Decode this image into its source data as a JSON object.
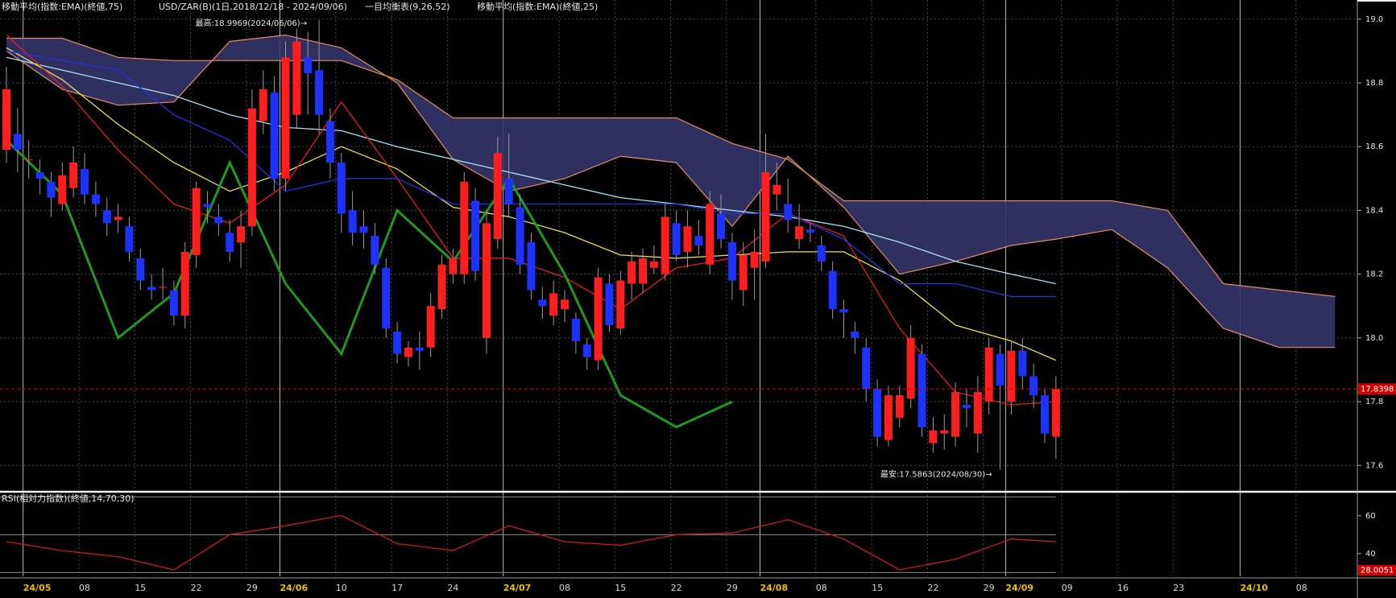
{
  "chart_data": [
    {
      "type": "candlestick",
      "title": "USD/ZAR(B)(1日,2018/12/18 - 2024/09/06)",
      "x": [
        "2024-04-29",
        "2024-04-30",
        "2024-05-01",
        "2024-05-02",
        "2024-05-03",
        "2024-05-06",
        "2024-05-07",
        "2024-05-08",
        "2024-05-09",
        "2024-05-10",
        "2024-05-13",
        "2024-05-14",
        "2024-05-15",
        "2024-05-16",
        "2024-05-17",
        "2024-05-20",
        "2024-05-21",
        "2024-05-22",
        "2024-05-23",
        "2024-05-24",
        "2024-05-27",
        "2024-05-28",
        "2024-05-29",
        "2024-05-30",
        "2024-05-31",
        "2024-06-03",
        "2024-06-04",
        "2024-06-05",
        "2024-06-06",
        "2024-06-07",
        "2024-06-10",
        "2024-06-11",
        "2024-06-12",
        "2024-06-13",
        "2024-06-14",
        "2024-06-17",
        "2024-06-18",
        "2024-06-19",
        "2024-06-20",
        "2024-06-21",
        "2024-06-24",
        "2024-06-25",
        "2024-06-26",
        "2024-06-27",
        "2024-06-28",
        "2024-07-01",
        "2024-07-02",
        "2024-07-03",
        "2024-07-04",
        "2024-07-05",
        "2024-07-08",
        "2024-07-09",
        "2024-07-10",
        "2024-07-11",
        "2024-07-12",
        "2024-07-15",
        "2024-07-16",
        "2024-07-17",
        "2024-07-18",
        "2024-07-19",
        "2024-07-22",
        "2024-07-23",
        "2024-07-24",
        "2024-07-25",
        "2024-07-26",
        "2024-07-29",
        "2024-07-30",
        "2024-07-31",
        "2024-08-01",
        "2024-08-02",
        "2024-08-05",
        "2024-08-06",
        "2024-08-07",
        "2024-08-08",
        "2024-08-09",
        "2024-08-12",
        "2024-08-13",
        "2024-08-14",
        "2024-08-15",
        "2024-08-16",
        "2024-08-19",
        "2024-08-20",
        "2024-08-21",
        "2024-08-22",
        "2024-08-23",
        "2024-08-26",
        "2024-08-27",
        "2024-08-28",
        "2024-08-29",
        "2024-08-30",
        "2024-09-02",
        "2024-09-03",
        "2024-09-04",
        "2024-09-05",
        "2024-09-06"
      ],
      "open": [
        18.59,
        18.64,
        18.56,
        18.52,
        18.49,
        18.42,
        18.47,
        18.53,
        18.45,
        18.4,
        18.37,
        18.35,
        18.25,
        18.16,
        18.16,
        18.15,
        18.07,
        18.26,
        18.42,
        18.38,
        18.33,
        18.3,
        18.35,
        18.68,
        18.77,
        18.5,
        18.7,
        18.88,
        18.84,
        18.68,
        18.55,
        18.4,
        18.35,
        18.32,
        18.22,
        18.02,
        17.94,
        17.97,
        17.97,
        18.09,
        18.2,
        18.2,
        18.43,
        18.0,
        18.31,
        18.5,
        18.41,
        18.3,
        18.12,
        18.07,
        18.09,
        18.06,
        17.98,
        17.93,
        18.17,
        18.03,
        18.17,
        18.17,
        18.22,
        18.2,
        18.36,
        18.27,
        18.32,
        18.23,
        18.39,
        18.3,
        18.15,
        18.22,
        18.24,
        18.45,
        18.42,
        18.31,
        18.34,
        18.29,
        18.21,
        18.09,
        18.02,
        17.97,
        17.84,
        17.68,
        17.75,
        17.81,
        17.95,
        17.67,
        17.7,
        17.69,
        17.79,
        17.7,
        17.8,
        17.95,
        17.8,
        17.96,
        17.88,
        17.82,
        17.69
      ],
      "high": [
        18.85,
        18.72,
        18.62,
        18.56,
        18.52,
        18.55,
        18.6,
        18.58,
        18.49,
        18.44,
        18.42,
        18.38,
        18.28,
        18.2,
        18.22,
        18.18,
        18.3,
        18.49,
        18.46,
        18.42,
        18.37,
        18.4,
        18.78,
        18.84,
        18.82,
        18.93,
        18.97,
        18.96,
        18.9969,
        18.72,
        18.58,
        18.46,
        18.4,
        18.36,
        18.25,
        18.05,
        17.99,
        18.02,
        18.14,
        18.26,
        18.28,
        18.52,
        18.47,
        18.4,
        18.63,
        18.64,
        18.45,
        18.33,
        18.16,
        18.18,
        18.15,
        18.08,
        18.0,
        18.22,
        18.2,
        18.21,
        18.27,
        18.28,
        18.29,
        18.42,
        18.4,
        18.4,
        18.37,
        18.46,
        18.45,
        18.33,
        18.3,
        18.34,
        18.64,
        18.55,
        18.5,
        18.42,
        18.36,
        18.32,
        18.24,
        18.12,
        18.05,
        18.0,
        17.87,
        17.85,
        17.85,
        18.04,
        17.98,
        17.75,
        17.76,
        17.86,
        17.84,
        17.88,
        18.0,
        17.98,
        17.99,
        18.0,
        17.92,
        17.84,
        17.88
      ],
      "low": [
        18.55,
        18.52,
        18.5,
        18.45,
        18.38,
        18.4,
        18.44,
        18.42,
        18.38,
        18.32,
        18.33,
        18.24,
        18.15,
        18.12,
        18.12,
        18.04,
        18.03,
        18.22,
        18.36,
        18.32,
        18.24,
        18.22,
        18.32,
        18.64,
        18.46,
        18.46,
        18.66,
        18.7,
        18.64,
        18.5,
        18.33,
        18.29,
        18.28,
        18.2,
        18.0,
        17.92,
        17.91,
        17.9,
        17.94,
        18.06,
        18.17,
        18.17,
        18.18,
        17.95,
        18.28,
        18.38,
        18.2,
        18.12,
        18.06,
        18.04,
        18.05,
        17.95,
        17.9,
        17.9,
        18.02,
        18.01,
        18.12,
        18.14,
        18.2,
        18.18,
        18.24,
        18.22,
        18.26,
        18.2,
        18.28,
        18.12,
        18.1,
        18.12,
        18.22,
        18.4,
        18.33,
        18.28,
        18.3,
        18.21,
        18.06,
        18.0,
        17.95,
        17.8,
        17.66,
        17.66,
        17.72,
        17.78,
        17.69,
        17.64,
        17.65,
        17.66,
        17.72,
        17.64,
        17.76,
        17.5863,
        17.76,
        17.84,
        17.78,
        17.67,
        17.62
      ],
      "close": [
        18.78,
        18.59,
        18.56,
        18.5,
        18.44,
        18.51,
        18.55,
        18.45,
        18.42,
        18.36,
        18.38,
        18.27,
        18.18,
        18.15,
        18.16,
        18.07,
        18.27,
        18.47,
        18.41,
        18.36,
        18.27,
        18.35,
        18.72,
        18.78,
        18.5,
        18.88,
        18.93,
        18.83,
        18.7,
        18.55,
        18.39,
        18.33,
        18.33,
        18.23,
        18.03,
        17.95,
        17.97,
        17.96,
        18.1,
        18.23,
        18.25,
        18.49,
        18.21,
        18.36,
        18.58,
        18.42,
        18.23,
        18.15,
        18.1,
        18.14,
        18.12,
        17.99,
        17.94,
        18.19,
        18.04,
        18.18,
        18.24,
        18.25,
        18.24,
        18.38,
        18.26,
        18.35,
        18.29,
        18.42,
        18.31,
        18.18,
        18.26,
        18.27,
        18.52,
        18.48,
        18.37,
        18.35,
        18.33,
        18.24,
        18.09,
        18.08,
        18.0,
        17.84,
        17.69,
        17.82,
        17.82,
        18.0,
        17.72,
        17.71,
        17.71,
        17.83,
        17.78,
        17.83,
        17.97,
        17.85,
        17.96,
        17.88,
        17.82,
        17.7,
        17.8398
      ],
      "up_color": "#ff1e1e",
      "down_color": "#1e32ff",
      "wick_color": "#9a9a9a",
      "ylim": [
        17.53,
        19.06
      ],
      "yticks": [
        17.6,
        17.8,
        {
          "value": 18,
          "label": "18.0"
        },
        18.2,
        18.4,
        18.6,
        18.8,
        {
          "value": 19,
          "label": "19.0"
        }
      ],
      "xticks": [
        {
          "value": "2024-05-01",
          "label": "24/05"
        },
        {
          "value": "2024-05-08",
          "label": "08"
        },
        {
          "value": "2024-05-15",
          "label": "15"
        },
        {
          "value": "2024-05-22",
          "label": "22"
        },
        {
          "value": "2024-05-29",
          "label": "29"
        },
        {
          "value": "2024-06-03",
          "label": "24/06"
        },
        {
          "value": "2024-06-10",
          "label": "10"
        },
        {
          "value": "2024-06-17",
          "label": "17"
        },
        {
          "value": "2024-06-24",
          "label": "24"
        },
        {
          "value": "2024-07-01",
          "label": "24/07"
        },
        {
          "value": "2024-07-08",
          "label": "08"
        },
        {
          "value": "2024-07-15",
          "label": "15"
        },
        {
          "value": "2024-07-22",
          "label": "22"
        },
        {
          "value": "2024-07-29",
          "label": "29"
        },
        {
          "value": "2024-08-01",
          "label": "24/08"
        },
        {
          "value": "2024-08-08",
          "label": "08"
        },
        {
          "value": "2024-08-15",
          "label": "15"
        },
        {
          "value": "2024-08-22",
          "label": "22"
        },
        {
          "value": "2024-08-29",
          "label": "29"
        },
        {
          "value": "2024-09-02",
          "label": "24/09"
        },
        {
          "value": "2024-09-09",
          "label": "09"
        },
        {
          "value": "2024-09-16",
          "label": "16"
        },
        {
          "value": "2024-09-23",
          "label": "23"
        },
        {
          "value": "2024-10-01",
          "label": "24/10"
        },
        {
          "value": "2024-10-08",
          "label": "08"
        }
      ],
      "grid": true,
      "last_price": 17.8398,
      "last_price_color": "#d00000",
      "annotations": [
        "最高:18.9969(2024/06/06)→",
        "最安:17.5863(2024/08/30)→"
      ],
      "indicators": {
        "x": [
          "2024-04-29",
          "2024-05-06",
          "2024-05-13",
          "2024-05-20",
          "2024-05-27",
          "2024-06-03",
          "2024-06-10",
          "2024-06-17",
          "2024-06-24",
          "2024-07-01",
          "2024-07-08",
          "2024-07-15",
          "2024-07-22",
          "2024-07-29",
          "2024-08-05",
          "2024-08-12",
          "2024-08-19",
          "2024-08-26",
          "2024-09-02",
          "2024-09-06"
        ],
        "series": [
          {
            "name": "移動平均(指数:EMA)(終値,75)",
            "color": "#a8e4f0",
            "values": [
              18.88,
              18.84,
              18.8,
              18.76,
              18.7,
              18.66,
              18.65,
              18.6,
              18.56,
              18.52,
              18.48,
              18.44,
              18.42,
              18.4,
              18.38,
              18.35,
              18.3,
              18.24,
              18.2,
              18.17
            ]
          },
          {
            "name": "移動平均(指数:EMA)(終値,25)",
            "color": "#e8e060",
            "values": [
              18.91,
              18.81,
              18.67,
              18.55,
              18.46,
              18.52,
              18.6,
              18.53,
              18.41,
              18.38,
              18.33,
              18.26,
              18.25,
              18.26,
              18.27,
              18.27,
              18.18,
              18.04,
              17.99,
              17.93
            ]
          },
          {
            "color": "#e02020",
            "values": [
              18.95,
              18.79,
              18.59,
              18.42,
              18.36,
              18.48,
              18.74,
              18.5,
              18.25,
              18.25,
              18.19,
              18.09,
              18.22,
              18.25,
              18.39,
              18.32,
              18.03,
              17.83,
              17.79,
              17.8
            ]
          },
          {
            "color": "#2434d8",
            "values": [
              18.9,
              18.87,
              18.84,
              18.7,
              18.62,
              18.46,
              18.5,
              18.5,
              18.42,
              18.42,
              18.42,
              18.42,
              18.42,
              18.39,
              18.39,
              18.31,
              18.17,
              18.17,
              18.13,
              18.13
            ]
          },
          {
            "color": "#1f9a1f",
            "values": [
              18.62,
              18.45,
              18.0,
              18.14,
              18.55,
              18.17,
              17.95,
              18.4,
              18.24,
              18.5,
              18.2,
              17.82,
              17.72,
              17.8,
              null,
              null,
              null,
              null,
              null,
              null
            ]
          }
        ]
      },
      "cloud": {
        "name": "一目均衡表(9,26,52)",
        "x": [
          "2024-04-29",
          "2024-05-06",
          "2024-05-13",
          "2024-05-20",
          "2024-05-27",
          "2024-06-03",
          "2024-06-10",
          "2024-06-17",
          "2024-06-24",
          "2024-07-01",
          "2024-07-08",
          "2024-07-15",
          "2024-07-22",
          "2024-07-29",
          "2024-08-05",
          "2024-08-12",
          "2024-08-19",
          "2024-08-26",
          "2024-09-02",
          "2024-09-06",
          "2024-09-13",
          "2024-09-20",
          "2024-09-27",
          "2024-10-04",
          "2024-10-11"
        ],
        "span_a": [
          18.9,
          18.78,
          18.73,
          18.74,
          18.93,
          18.95,
          18.91,
          18.8,
          18.56,
          18.46,
          18.5,
          18.57,
          18.55,
          18.35,
          18.57,
          18.41,
          18.2,
          18.24,
          18.29,
          18.31,
          18.34,
          18.22,
          18.03,
          17.97,
          17.97
        ],
        "span_b": [
          18.94,
          18.94,
          18.88,
          18.87,
          18.87,
          18.87,
          18.87,
          18.81,
          18.69,
          18.69,
          18.69,
          18.69,
          18.69,
          18.61,
          18.56,
          18.43,
          18.43,
          18.43,
          18.43,
          18.43,
          18.43,
          18.4,
          18.17,
          18.15,
          18.13
        ],
        "fill": "#34346a",
        "edge_color": "#e09060"
      }
    },
    {
      "type": "line",
      "title": "RSI(相対力指数)(終値,14,70,30)",
      "x": [
        "2024-04-29",
        "2024-05-06",
        "2024-05-13",
        "2024-05-20",
        "2024-05-27",
        "2024-06-03",
        "2024-06-10",
        "2024-06-17",
        "2024-06-24",
        "2024-07-01",
        "2024-07-08",
        "2024-07-15",
        "2024-07-22",
        "2024-07-29",
        "2024-08-05",
        "2024-08-12",
        "2024-08-19",
        "2024-08-26",
        "2024-09-02",
        "2024-09-06"
      ],
      "values": [
        46.3,
        41.6,
        38.4,
        31.4,
        50.0,
        54.7,
        60.2,
        45.3,
        41.6,
        54.7,
        46.3,
        44.4,
        50.0,
        50.9,
        57.9,
        47.7,
        31.4,
        37.0,
        47.7,
        46.3
      ],
      "color": "#c82020",
      "ylim": [
        28.0051,
        71
      ],
      "yticks": [
        40,
        60
      ],
      "levels": [
        30,
        50,
        70
      ]
    }
  ]
}
